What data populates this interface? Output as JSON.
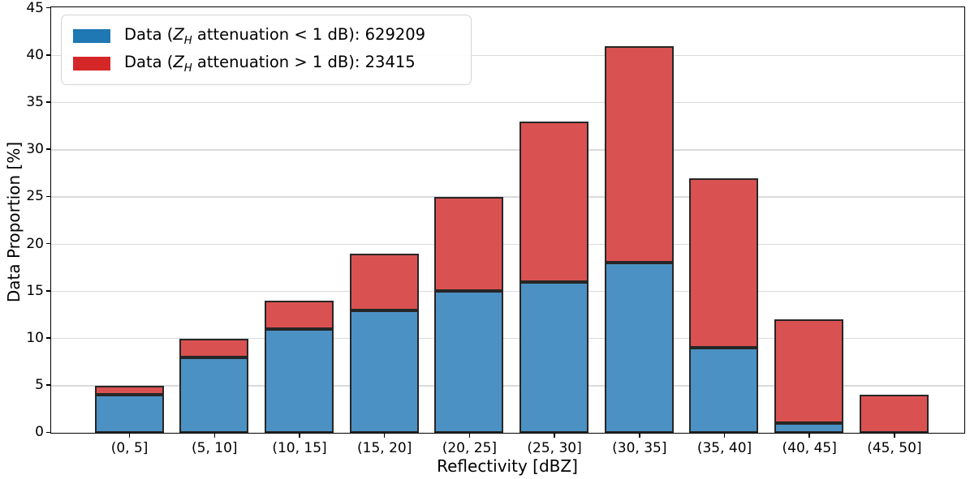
{
  "figure": {
    "xlabel": "Reflectivity [dBZ]",
    "ylabel": "Data Proportion [%]"
  },
  "legend": {
    "position": "upper left",
    "items": [
      {
        "color": "#1f77b4",
        "pre": "Data (",
        "var": "Z",
        "sub": "H",
        "post": " attenuation < 1 dB): 629209",
        "count": "629209"
      },
      {
        "color": "#d62728",
        "pre": "Data (",
        "var": "Z",
        "sub": "H",
        "post": " attenuation > 1 dB): 23415",
        "count": "23415"
      }
    ]
  },
  "chart_data": {
    "type": "bar",
    "stacked": true,
    "title": "",
    "xlabel": "Reflectivity [dBZ]",
    "ylabel": "Data Proportion [%]",
    "categories": [
      "(0, 5]",
      "(5, 10]",
      "(10, 15]",
      "(15, 20]",
      "(20, 25]",
      "(25, 30]",
      "(30, 35]",
      "(35, 40]",
      "(40, 45]",
      "(45, 50]"
    ],
    "series": [
      {
        "name": "Data (Z_H attenuation < 1 dB): 629209",
        "legend_color": "#1f77b4",
        "bar_fill": "#4c91c3",
        "values": [
          4,
          8,
          11,
          13,
          15,
          16,
          18,
          9,
          1,
          0
        ]
      },
      {
        "name": "Data (Z_H attenuation > 1 dB): 23415",
        "legend_color": "#d62728",
        "bar_fill": "#d95251",
        "values": [
          1,
          2,
          3,
          6,
          10,
          17,
          23,
          18,
          11,
          4
        ]
      }
    ],
    "stack_totals": [
      5,
      10,
      14,
      19,
      25,
      33,
      41,
      27,
      12,
      4
    ],
    "ylim": [
      0,
      45
    ],
    "yticks": [
      0,
      5,
      10,
      15,
      20,
      25,
      30,
      35,
      40,
      45
    ],
    "grid": true,
    "legend_position": "upper left",
    "bar_edge_color": "#262626",
    "bar_alpha": 0.8
  }
}
